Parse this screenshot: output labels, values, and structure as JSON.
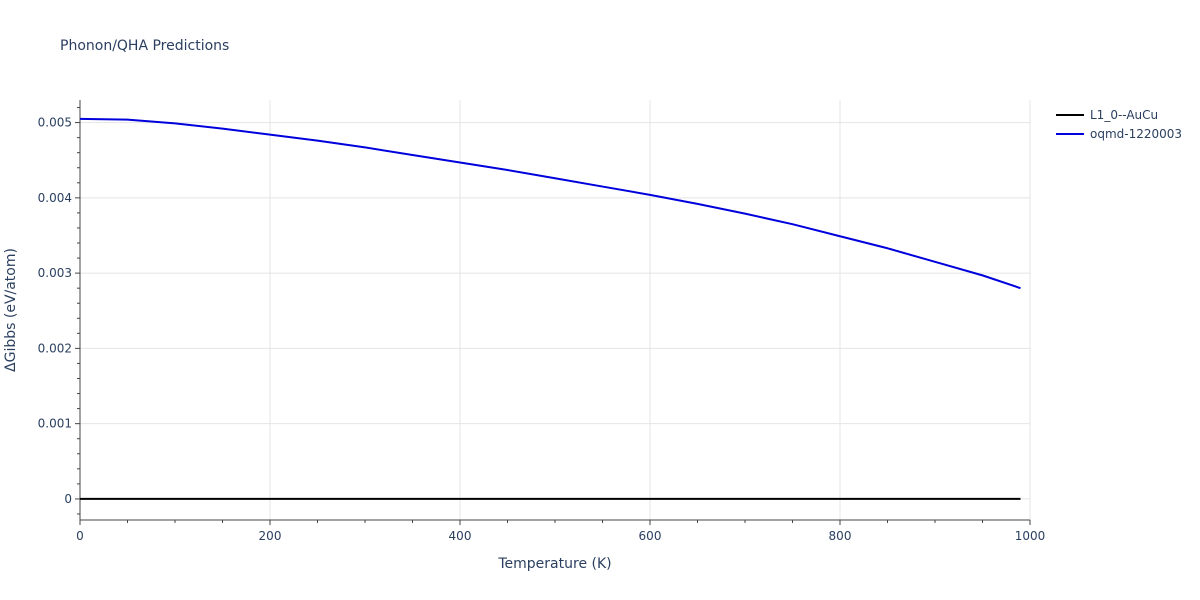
{
  "chart_data": {
    "type": "line",
    "title": "Phonon/QHA Predictions",
    "xlabel": "Temperature (K)",
    "ylabel": "ΔGibbs (eV/atom)",
    "xlim": [
      0,
      1000
    ],
    "ylim": [
      -0.00028,
      0.0053
    ],
    "x_ticks": [
      0,
      200,
      400,
      600,
      800,
      1000
    ],
    "x_tick_labels": [
      "0",
      "200",
      "400",
      "600",
      "800",
      "1000"
    ],
    "y_ticks": [
      0,
      0.001,
      0.002,
      0.003,
      0.004,
      0.005
    ],
    "y_tick_labels": [
      "0",
      "0.001",
      "0.002",
      "0.003",
      "0.004",
      "0.005"
    ],
    "grid": true,
    "legend": "top-right",
    "series": [
      {
        "name": "L1_0--AuCu",
        "color": "#000000",
        "x": [
          0,
          990
        ],
        "y": [
          0,
          0
        ]
      },
      {
        "name": "oqmd-1220003",
        "color": "#0000dd",
        "x": [
          0,
          50,
          100,
          150,
          200,
          250,
          300,
          350,
          400,
          450,
          500,
          550,
          600,
          650,
          700,
          750,
          800,
          850,
          900,
          950,
          990
        ],
        "y": [
          0.00505,
          0.00504,
          0.00499,
          0.00492,
          0.00484,
          0.00476,
          0.00467,
          0.00457,
          0.00447,
          0.00437,
          0.00426,
          0.00415,
          0.00404,
          0.00392,
          0.00379,
          0.00365,
          0.00349,
          0.00333,
          0.00315,
          0.00297,
          0.0028
        ]
      }
    ]
  }
}
